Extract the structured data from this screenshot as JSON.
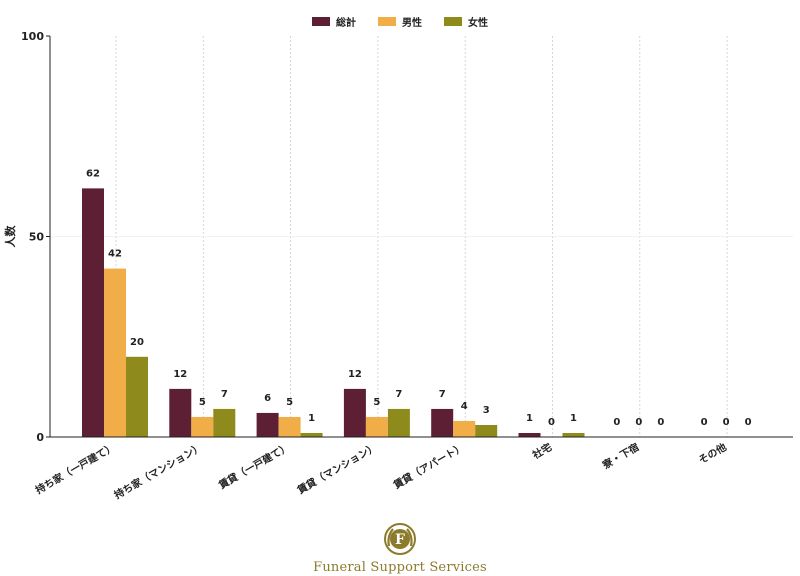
{
  "chart_data": {
    "type": "bar",
    "title": "",
    "xlabel": "",
    "ylabel": "人数",
    "ylim": [
      0,
      100
    ],
    "yticks": [
      0,
      50,
      100
    ],
    "grid": "vertical-dotted",
    "legend_position": "top-center",
    "categories": [
      "持ち家（一戸建て）",
      "持ち家（マンション）",
      "賃貸（一戸建て）",
      "賃貸（マンション）",
      "賃貸（アパート）",
      "社宅",
      "寮・下宿",
      "その他"
    ],
    "series": [
      {
        "name": "総計",
        "color": "#5c1f33",
        "values": [
          62,
          12,
          6,
          12,
          7,
          1,
          0,
          0
        ]
      },
      {
        "name": "男性",
        "color": "#f0ad48",
        "values": [
          42,
          5,
          5,
          5,
          4,
          0,
          0,
          0
        ]
      },
      {
        "name": "女性",
        "color": "#8f8a1c",
        "values": [
          20,
          7,
          1,
          7,
          3,
          1,
          0,
          0
        ]
      }
    ]
  },
  "logo": {
    "letter": "F",
    "text": "Funeral Support Services",
    "icon": "wreath-emblem-icon"
  }
}
